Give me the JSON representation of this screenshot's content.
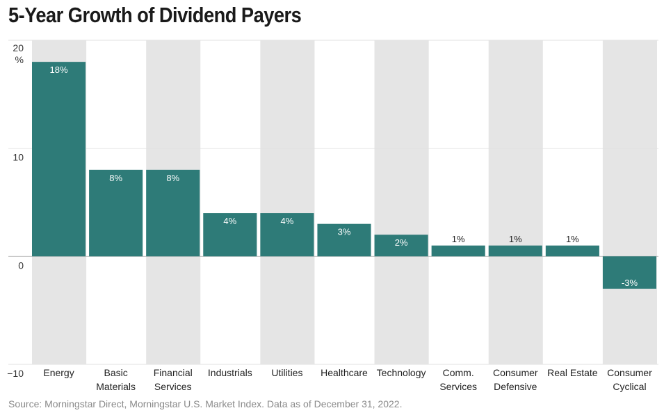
{
  "chart_data": {
    "type": "bar",
    "title": "5-Year Growth of Dividend Payers",
    "categories": [
      [
        "Energy"
      ],
      [
        "Basic",
        "Materials"
      ],
      [
        "Financial",
        "Services"
      ],
      [
        "Industrials"
      ],
      [
        "Utilities"
      ],
      [
        "Healthcare"
      ],
      [
        "Technology"
      ],
      [
        "Comm.",
        "Services"
      ],
      [
        "Consumer",
        "Defensive"
      ],
      [
        "Real Estate"
      ],
      [
        "Consumer",
        "Cyclical"
      ]
    ],
    "values": [
      18,
      8,
      8,
      4,
      4,
      3,
      2,
      1,
      1,
      1,
      -3
    ],
    "value_labels": [
      "18%",
      "8%",
      "8%",
      "4%",
      "4%",
      "3%",
      "2%",
      "1%",
      "1%",
      "1%",
      "-3%"
    ],
    "ylim": [
      -10,
      20
    ],
    "yticks": [
      "20",
      "10",
      "0",
      "−10"
    ],
    "ytick_values": [
      20,
      10,
      0,
      -10
    ],
    "yunit": "%",
    "xlabel": "",
    "ylabel": "",
    "grid": true,
    "colors": {
      "bar": "#2e7b78",
      "band": "#e5e5e5",
      "grid": "#e2e2e2",
      "zero_line": "#bbbbbb",
      "label_inside": "#ffffff",
      "label_outside": "#222222"
    }
  },
  "source": "Source: Morningstar Direct, Morningstar U.S. Market Index. Data as of December 31, 2022."
}
